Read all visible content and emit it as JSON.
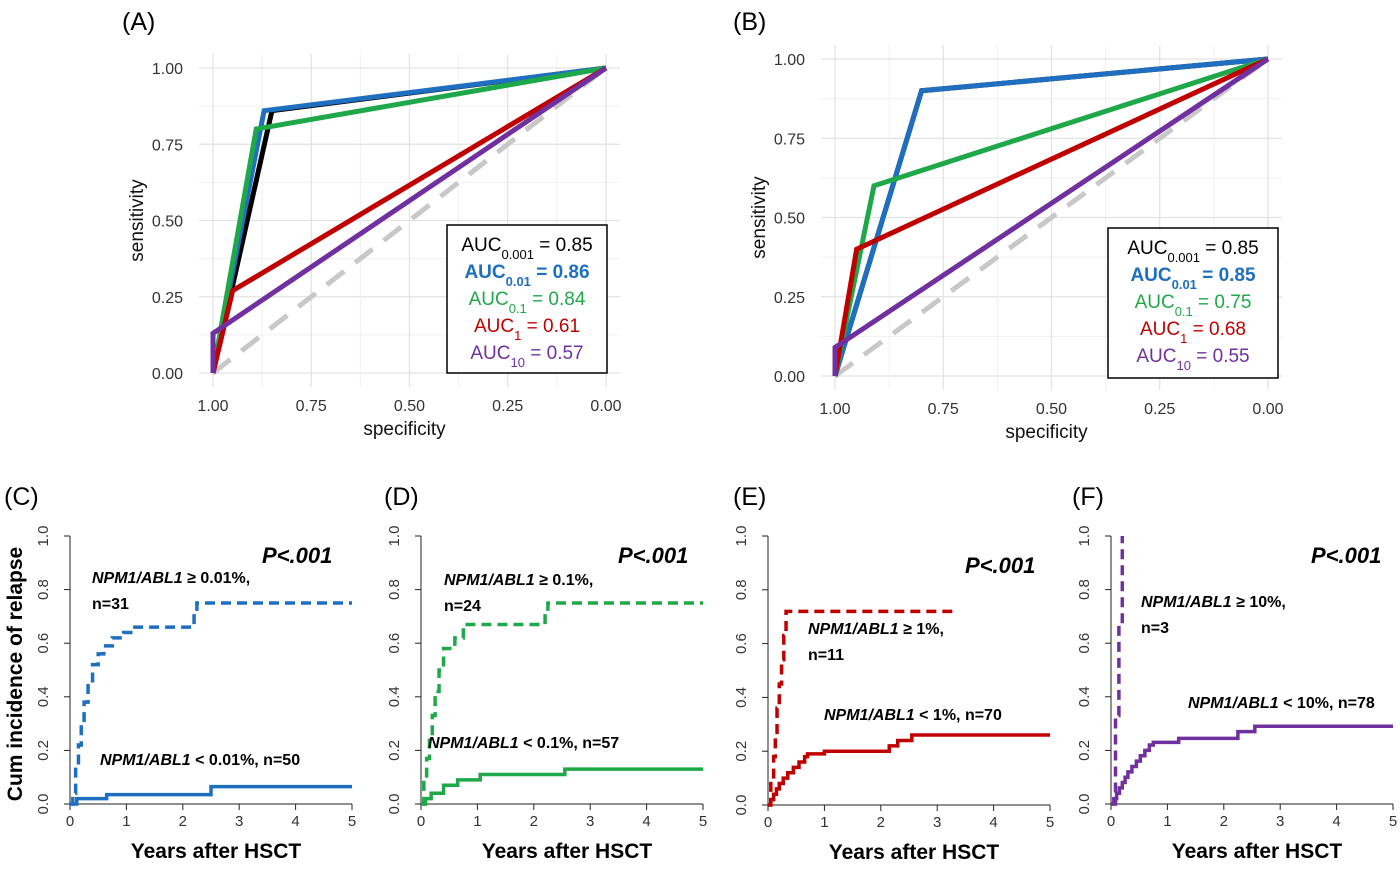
{
  "chart_data": [
    {
      "panel_label": "(A)",
      "type": "line",
      "xlabel": "specificity",
      "ylabel": "sensitivity",
      "x_reversed": true,
      "xlim": [
        1.0,
        0.0
      ],
      "ylim": [
        0.0,
        1.0
      ],
      "xticks": [
        "1.00",
        "0.75",
        "0.50",
        "0.25",
        "0.00"
      ],
      "yticks": [
        "0.00",
        "0.25",
        "0.50",
        "0.75",
        "1.00"
      ],
      "grid": true,
      "reference_line": {
        "style": "dashed",
        "color": "#c8c8c8"
      },
      "legend_position": "bottom-right",
      "series": [
        {
          "name": "AUC0.001",
          "color": "#000000",
          "legend_main": "AUC",
          "legend_sub": "0.001",
          "legend_value": " = 0.85",
          "legend_bold": false,
          "points": [
            [
              1.0,
              0.0
            ],
            [
              0.85,
              0.86
            ],
            [
              0.0,
              1.0
            ]
          ]
        },
        {
          "name": "AUC0.01",
          "color": "#1f6fc1",
          "legend_main": "AUC",
          "legend_sub": "0.01",
          "legend_value": " = 0.86",
          "legend_bold": true,
          "points": [
            [
              1.0,
              0.0
            ],
            [
              0.87,
              0.86
            ],
            [
              0.0,
              1.0
            ]
          ]
        },
        {
          "name": "AUC0.1",
          "color": "#1fa84a",
          "legend_main": "AUC",
          "legend_sub": "0.1",
          "legend_value": " = 0.84",
          "legend_bold": false,
          "points": [
            [
              1.0,
              0.0
            ],
            [
              0.89,
              0.8
            ],
            [
              0.0,
              1.0
            ]
          ]
        },
        {
          "name": "AUC1",
          "color": "#c00000",
          "legend_main": "AUC",
          "legend_sub": "1",
          "legend_value": " = 0.61",
          "legend_bold": false,
          "points": [
            [
              1.0,
              0.0
            ],
            [
              0.95,
              0.27
            ],
            [
              0.0,
              1.0
            ]
          ]
        },
        {
          "name": "AUC10",
          "color": "#7030a0",
          "legend_main": "AUC",
          "legend_sub": "10",
          "legend_value": " = 0.57",
          "legend_bold": false,
          "points": [
            [
              1.0,
              0.0
            ],
            [
              1.0,
              0.13
            ],
            [
              0.0,
              1.0
            ]
          ]
        }
      ]
    },
    {
      "panel_label": "(B)",
      "type": "line",
      "xlabel": "specificity",
      "ylabel": "sensitivity",
      "x_reversed": true,
      "xlim": [
        1.0,
        0.0
      ],
      "ylim": [
        0.0,
        1.0
      ],
      "xticks": [
        "1.00",
        "0.75",
        "0.50",
        "0.25",
        "0.00"
      ],
      "yticks": [
        "0.00",
        "0.25",
        "0.50",
        "0.75",
        "1.00"
      ],
      "grid": true,
      "reference_line": {
        "style": "dashed",
        "color": "#c8c8c8"
      },
      "legend_position": "bottom-right",
      "series": [
        {
          "name": "AUC0.001",
          "color": "#000000",
          "legend_main": "AUC",
          "legend_sub": "0.001",
          "legend_value": " = 0.85",
          "legend_bold": false,
          "points": [
            [
              1.0,
              0.0
            ],
            [
              0.8,
              0.9
            ],
            [
              0.0,
              1.0
            ]
          ]
        },
        {
          "name": "AUC0.01",
          "color": "#1f6fc1",
          "legend_main": "AUC",
          "legend_sub": "0.01",
          "legend_value": " = 0.85",
          "legend_bold": true,
          "points": [
            [
              1.0,
              0.0
            ],
            [
              0.8,
              0.9
            ],
            [
              0.0,
              1.0
            ]
          ]
        },
        {
          "name": "AUC0.1",
          "color": "#1fa84a",
          "legend_main": "AUC",
          "legend_sub": "0.1",
          "legend_value": " = 0.75",
          "legend_bold": false,
          "points": [
            [
              1.0,
              0.0
            ],
            [
              0.91,
              0.6
            ],
            [
              0.0,
              1.0
            ]
          ]
        },
        {
          "name": "AUC1",
          "color": "#c00000",
          "legend_main": "AUC",
          "legend_sub": "1",
          "legend_value": " = 0.68",
          "legend_bold": false,
          "points": [
            [
              1.0,
              0.0
            ],
            [
              0.95,
              0.4
            ],
            [
              0.0,
              1.0
            ]
          ]
        },
        {
          "name": "AUC10",
          "color": "#7030a0",
          "legend_main": "AUC",
          "legend_sub": "10",
          "legend_value": " = 0.55",
          "legend_bold": false,
          "points": [
            [
              1.0,
              0.0
            ],
            [
              1.0,
              0.09
            ],
            [
              0.0,
              1.0
            ]
          ]
        }
      ]
    },
    {
      "panel_label": "(C)",
      "type": "line",
      "xlabel": "Years after HSCT",
      "ylabel": "Cum incidence of relapse",
      "xlim": [
        0,
        5
      ],
      "ylim": [
        0,
        1.0
      ],
      "xticks": [
        0,
        1,
        2,
        3,
        4,
        5
      ],
      "yticks": [
        "0.0",
        "0.2",
        "0.4",
        "0.6",
        "0.8",
        "1.0"
      ],
      "p_value": "P<.001",
      "color": "#1f6fc1",
      "series": [
        {
          "label_italic": "NPM1/ABL1",
          "label_rest": " ≥ 0.01%,",
          "label_line2": "n=31",
          "style": "dashed",
          "steps": [
            [
              0,
              0
            ],
            [
              0.05,
              0.04
            ],
            [
              0.1,
              0.14
            ],
            [
              0.15,
              0.22
            ],
            [
              0.2,
              0.3
            ],
            [
              0.25,
              0.38
            ],
            [
              0.32,
              0.45
            ],
            [
              0.4,
              0.52
            ],
            [
              0.5,
              0.56
            ],
            [
              0.6,
              0.59
            ],
            [
              0.75,
              0.62
            ],
            [
              0.95,
              0.64
            ],
            [
              1.15,
              0.66
            ],
            [
              2.2,
              0.72
            ],
            [
              2.25,
              0.75
            ],
            [
              5.0,
              0.75
            ]
          ]
        },
        {
          "label_italic": "NPM1/ABL1",
          "label_rest": " < 0.01%, n=50",
          "label_line2": "",
          "style": "solid",
          "steps": [
            [
              0,
              0
            ],
            [
              0.12,
              0.02
            ],
            [
              0.65,
              0.035
            ],
            [
              2.5,
              0.065
            ],
            [
              5.0,
              0.065
            ]
          ]
        }
      ]
    },
    {
      "panel_label": "(D)",
      "type": "line",
      "xlabel": "Years after HSCT",
      "ylabel": "",
      "xlim": [
        0,
        5
      ],
      "ylim": [
        0,
        1.0
      ],
      "xticks": [
        0,
        1,
        2,
        3,
        4,
        5
      ],
      "yticks": [
        "0.0",
        "0.2",
        "0.4",
        "0.6",
        "0.8",
        "1.0"
      ],
      "p_value": "P<.001",
      "color": "#1fa84a",
      "series": [
        {
          "label_italic": "NPM1/ABL1",
          "label_rest": " ≥ 0.1%,",
          "label_line2": "n=24",
          "style": "dashed",
          "steps": [
            [
              0,
              0
            ],
            [
              0.05,
              0.08
            ],
            [
              0.1,
              0.17
            ],
            [
              0.15,
              0.25
            ],
            [
              0.2,
              0.33
            ],
            [
              0.25,
              0.42
            ],
            [
              0.32,
              0.5
            ],
            [
              0.4,
              0.58
            ],
            [
              0.6,
              0.62
            ],
            [
              0.75,
              0.67
            ],
            [
              2.2,
              0.71
            ],
            [
              2.25,
              0.75
            ],
            [
              5.0,
              0.75
            ]
          ]
        },
        {
          "label_italic": "NPM1/ABL1",
          "label_rest": " < 0.1%, n=57",
          "label_line2": "",
          "style": "solid",
          "steps": [
            [
              0,
              0
            ],
            [
              0.08,
              0.02
            ],
            [
              0.18,
              0.04
            ],
            [
              0.4,
              0.07
            ],
            [
              0.65,
              0.09
            ],
            [
              1.05,
              0.11
            ],
            [
              2.55,
              0.13
            ],
            [
              5.0,
              0.13
            ]
          ]
        }
      ]
    },
    {
      "panel_label": "(E)",
      "type": "line",
      "xlabel": "Years after HSCT",
      "ylabel": "",
      "xlim": [
        0,
        5
      ],
      "ylim": [
        0,
        1.0
      ],
      "xticks": [
        0,
        1,
        2,
        3,
        4,
        5
      ],
      "yticks": [
        "0.0",
        "0.2",
        "0.4",
        "0.6",
        "0.8",
        "1.0"
      ],
      "p_value": "P<.001",
      "color": "#c00000",
      "series": [
        {
          "label_italic": "NPM1/ABL1",
          "label_rest": " ≥ 1%,",
          "label_line2": "n=11",
          "style": "dashed",
          "steps": [
            [
              0,
              0
            ],
            [
              0.05,
              0.09
            ],
            [
              0.1,
              0.18
            ],
            [
              0.13,
              0.27
            ],
            [
              0.16,
              0.36
            ],
            [
              0.2,
              0.45
            ],
            [
              0.24,
              0.54
            ],
            [
              0.28,
              0.63
            ],
            [
              0.32,
              0.72
            ],
            [
              3.35,
              0.72
            ]
          ]
        },
        {
          "label_italic": "NPM1/ABL1",
          "label_rest": " < 1%, n=70",
          "label_line2": "",
          "style": "solid",
          "steps": [
            [
              0,
              0
            ],
            [
              0.05,
              0.02
            ],
            [
              0.1,
              0.04
            ],
            [
              0.15,
              0.06
            ],
            [
              0.2,
              0.08
            ],
            [
              0.27,
              0.1
            ],
            [
              0.35,
              0.12
            ],
            [
              0.45,
              0.14
            ],
            [
              0.55,
              0.16
            ],
            [
              0.65,
              0.18
            ],
            [
              0.7,
              0.19
            ],
            [
              1.0,
              0.2
            ],
            [
              2.15,
              0.22
            ],
            [
              2.3,
              0.24
            ],
            [
              2.55,
              0.26
            ],
            [
              5.0,
              0.26
            ]
          ]
        }
      ]
    },
    {
      "panel_label": "(F)",
      "type": "line",
      "xlabel": "Years after HSCT",
      "ylabel": "",
      "xlim": [
        0,
        5
      ],
      "ylim": [
        0,
        1.0
      ],
      "xticks": [
        0,
        1,
        2,
        3,
        4,
        5
      ],
      "yticks": [
        "0.0",
        "0.2",
        "0.4",
        "0.6",
        "0.8",
        "1.0"
      ],
      "p_value": "P<.001",
      "color": "#7030a0",
      "series": [
        {
          "label_italic": "NPM1/ABL1",
          "label_rest": " ≥ 10%,",
          "label_line2": "n=3",
          "style": "dashed",
          "steps": [
            [
              0,
              0
            ],
            [
              0.08,
              0.33
            ],
            [
              0.14,
              0.67
            ],
            [
              0.2,
              1.0
            ]
          ]
        },
        {
          "label_italic": "NPM1/ABL1",
          "label_rest": " < 10%, n=78",
          "label_line2": "",
          "style": "solid",
          "steps": [
            [
              0,
              0
            ],
            [
              0.05,
              0.02
            ],
            [
              0.1,
              0.04
            ],
            [
              0.15,
              0.06
            ],
            [
              0.2,
              0.08
            ],
            [
              0.25,
              0.1
            ],
            [
              0.3,
              0.12
            ],
            [
              0.37,
              0.14
            ],
            [
              0.45,
              0.16
            ],
            [
              0.52,
              0.18
            ],
            [
              0.6,
              0.2
            ],
            [
              0.68,
              0.22
            ],
            [
              0.75,
              0.23
            ],
            [
              1.2,
              0.245
            ],
            [
              2.25,
              0.27
            ],
            [
              2.55,
              0.29
            ],
            [
              5.0,
              0.29
            ]
          ]
        }
      ]
    }
  ]
}
